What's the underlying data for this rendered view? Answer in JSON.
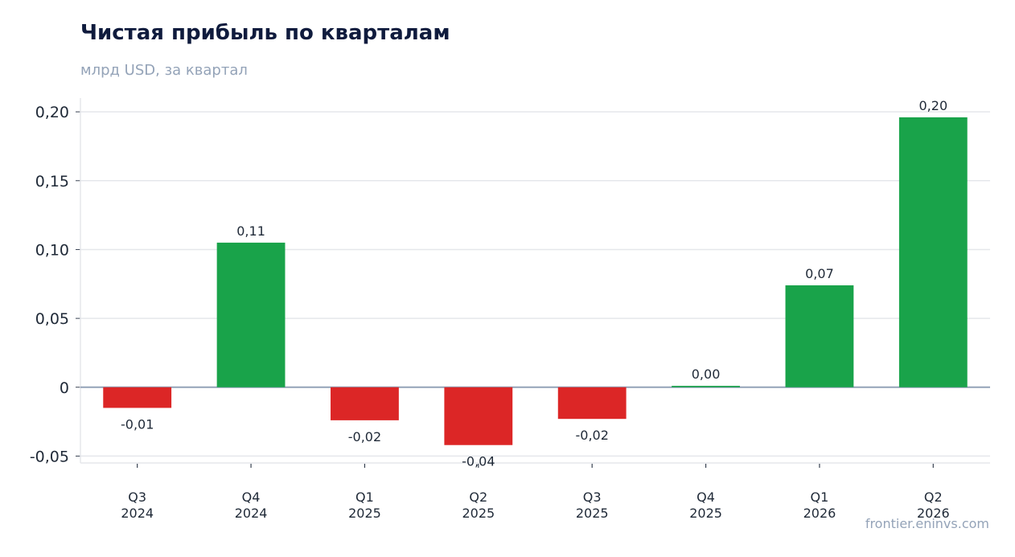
{
  "header": {
    "title": "Чистая прибыль по кварталам",
    "subtitle": "млрд USD, за квартал"
  },
  "footer": {
    "source": "frontier.eninvs.com"
  },
  "colors": {
    "positive": "#19a34a",
    "negative": "#dc2626",
    "zero_line": "#94a3b8",
    "grid": "#e5e7eb"
  },
  "chart_data": {
    "type": "bar",
    "title": "Чистая прибыль по кварталам",
    "subtitle": "млрд USD, за квартал",
    "xlabel": "",
    "ylabel": "",
    "categories": [
      [
        "Q3",
        "2024"
      ],
      [
        "Q4",
        "2024"
      ],
      [
        "Q1",
        "2025"
      ],
      [
        "Q2",
        "2025"
      ],
      [
        "Q3",
        "2025"
      ],
      [
        "Q4",
        "2025"
      ],
      [
        "Q1",
        "2026"
      ],
      [
        "Q2",
        "2026"
      ]
    ],
    "values": [
      -0.015,
      0.105,
      -0.024,
      -0.042,
      -0.023,
      0.001,
      0.074,
      0.196
    ],
    "data_labels": [
      "-0,01",
      "0,11",
      "-0,02",
      "-0,04",
      "-0,02",
      "0,00",
      "0,07",
      "0,20"
    ],
    "ylim": [
      -0.055,
      0.21
    ],
    "yticks": [
      -0.05,
      0,
      0.05,
      0.1,
      0.15,
      0.2
    ],
    "ytick_labels": [
      "-0,05",
      "0",
      "0,05",
      "0,10",
      "0,15",
      "0,20"
    ],
    "grid": true,
    "legend": "none"
  }
}
